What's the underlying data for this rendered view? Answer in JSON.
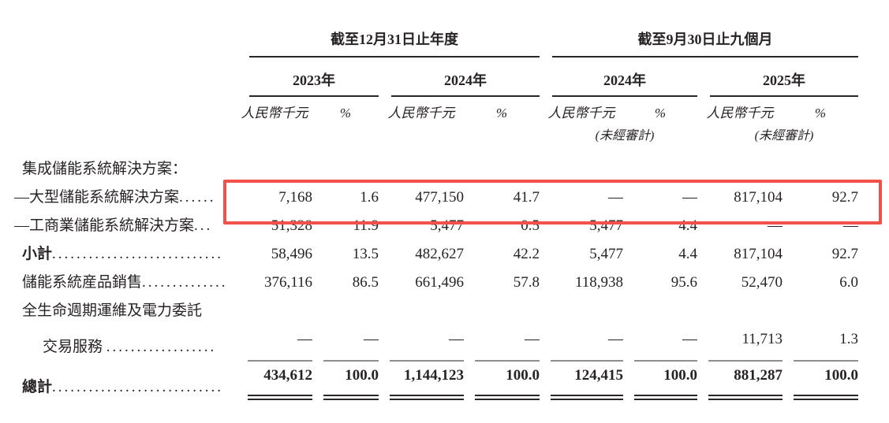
{
  "page": {
    "background": "#ffffff",
    "text_color": "#272324"
  },
  "highlight": {
    "border_color": "#f2504b"
  },
  "table": {
    "header": {
      "period1": "截至12月31日止年度",
      "period2": "截至9月30日止九個月",
      "year1": "2023年",
      "year2": "2024年",
      "year3": "2024年",
      "year4": "2025年",
      "unit": "人民幣千元",
      "pct": "%",
      "unaudited": "(未經審計)"
    },
    "rows": [
      {
        "label": "集成儲能系統解決方案：",
        "dots": "",
        "cells": [
          "",
          "",
          "",
          "",
          "",
          "",
          "",
          ""
        ]
      },
      {
        "label": "—大型儲能系統解決方案",
        "dots": "......",
        "cells": [
          "7,168",
          "1.6",
          "477,150",
          "41.7",
          "—",
          "—",
          "817,104",
          "92.7"
        ]
      },
      {
        "label": "—工商業儲能系統解決方案",
        "dots": "...",
        "cells": [
          "51,328",
          "11.9",
          "5,477",
          "0.5",
          "5,477",
          "4.4",
          "—",
          "—"
        ]
      },
      {
        "label": "小計",
        "dots": "............................",
        "cells": [
          "58,496",
          "13.5",
          "482,627",
          "42.2",
          "5,477",
          "4.4",
          "817,104",
          "92.7"
        ]
      },
      {
        "label": "儲能系統産品銷售",
        "dots": "..............",
        "cells": [
          "376,116",
          "86.5",
          "661,496",
          "57.8",
          "118,938",
          "95.6",
          "52,470",
          "6.0"
        ]
      },
      {
        "label": "全生命週期運維及電力委託",
        "dots": "",
        "cells": [
          "",
          "",
          "",
          "",
          "",
          "",
          "",
          ""
        ]
      },
      {
        "label": "交易服務 ",
        "dots": "..................",
        "cells": [
          "—",
          "—",
          "—",
          "—",
          "—",
          "—",
          "11,713",
          "1.3"
        ]
      },
      {
        "label": "總計",
        "dots": "............................",
        "cells": [
          "434,612",
          "100.0",
          "1,144,123",
          "100.0",
          "124,415",
          "100.0",
          "881,287",
          "100.0"
        ]
      }
    ]
  }
}
